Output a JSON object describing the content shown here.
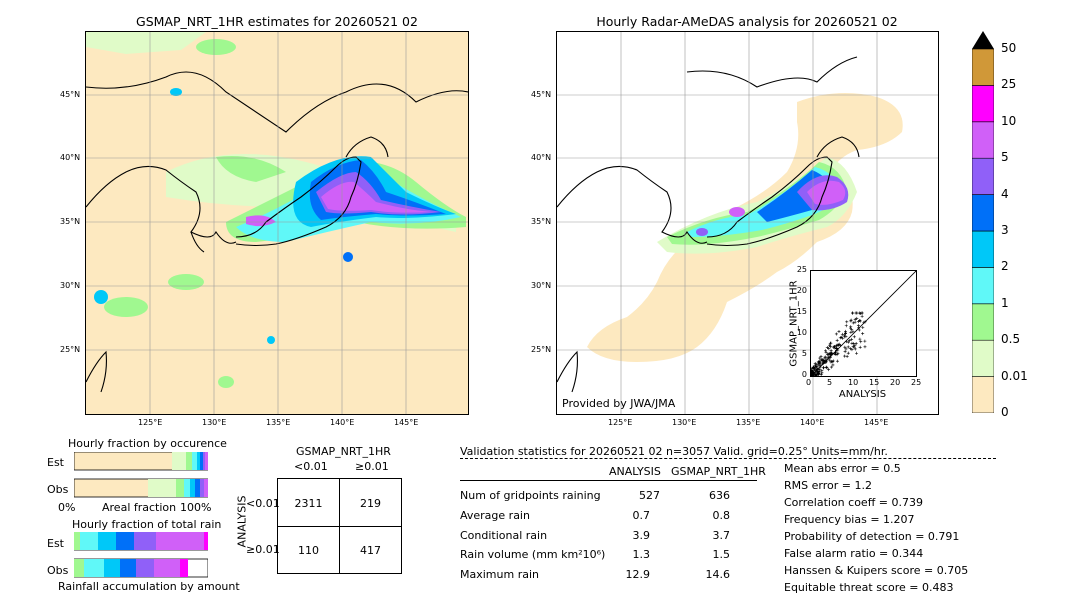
{
  "left_map": {
    "title": "GSMAP_NRT_1HR estimates for 20260521 02",
    "lat_ticks": [
      "45°N",
      "40°N",
      "35°N",
      "30°N",
      "25°N"
    ],
    "lon_ticks": [
      "125°E",
      "130°E",
      "135°E",
      "140°E",
      "145°E"
    ]
  },
  "right_map": {
    "title": "Hourly Radar-AMeDAS analysis for 20260521 02",
    "lat_ticks": [
      "45°N",
      "40°N",
      "35°N",
      "30°N",
      "25°N"
    ],
    "lon_ticks": [
      "125°E",
      "130°E",
      "135°E",
      "140°E",
      "145°E"
    ],
    "credit": "Provided by JWA/JMA"
  },
  "colorbar": {
    "levels": [
      "0",
      "0.01",
      "0.5",
      "1",
      "2",
      "3",
      "4",
      "5",
      "10",
      "25",
      "50"
    ],
    "colors": [
      "#fde9c0",
      "#e0fbc8",
      "#a0f890",
      "#60f8f8",
      "#00c8f8",
      "#0070f8",
      "#9060f8",
      "#d060f8",
      "#ff00ff",
      "#d09838"
    ]
  },
  "scatter": {
    "xlabel": "ANALYSIS",
    "ylabel": "GSMAP_NRT_1HR",
    "ticks": [
      "0",
      "5",
      "10",
      "15",
      "20",
      "25"
    ],
    "range": [
      0,
      25
    ]
  },
  "fraction": {
    "occurrence_title": "Hourly fraction by occurence",
    "total_title": "Hourly fraction of total rain",
    "est_label": "Est",
    "obs_label": "Obs",
    "axis_left": "0%",
    "axis_mid": "Areal fraction",
    "axis_right": "100%",
    "footer": "Rainfall accumulation by amount"
  },
  "contingency": {
    "col_header": "GSMAP_NRT_1HR",
    "col_lt": "<0.01",
    "col_ge": "≥0.01",
    "row_header": "ANALYSIS",
    "row_lt": "<0.01",
    "row_ge": "≥0.01",
    "cells": [
      "2311",
      "219",
      "110",
      "417"
    ]
  },
  "validation": {
    "header": "Validation statistics for 20260521 02  n=3057 Valid. grid=0.25° Units=mm/hr.",
    "col_analysis": "ANALYSIS",
    "col_gsmap": "GSMAP_NRT_1HR",
    "rows": [
      {
        "label": "Num of gridpoints raining",
        "analysis": "527",
        "gsmap": "636"
      },
      {
        "label": "Average rain",
        "analysis": "0.7",
        "gsmap": "0.8"
      },
      {
        "label": "Conditional rain",
        "analysis": "3.9",
        "gsmap": "3.7"
      },
      {
        "label": "Rain volume (mm km²10⁶)",
        "analysis": "1.3",
        "gsmap": "1.5"
      },
      {
        "label": "Maximum rain",
        "analysis": "12.9",
        "gsmap": "14.6"
      }
    ],
    "scores": [
      "Mean abs error =    0.5",
      "RMS error =    1.2",
      "Correlation coeff =  0.739",
      "Frequency bias =  1.207",
      "Probability of detection =  0.791",
      "False alarm ratio =  0.344",
      "Hanssen & Kuipers score =  0.705",
      "Equitable threat score =  0.483"
    ]
  }
}
